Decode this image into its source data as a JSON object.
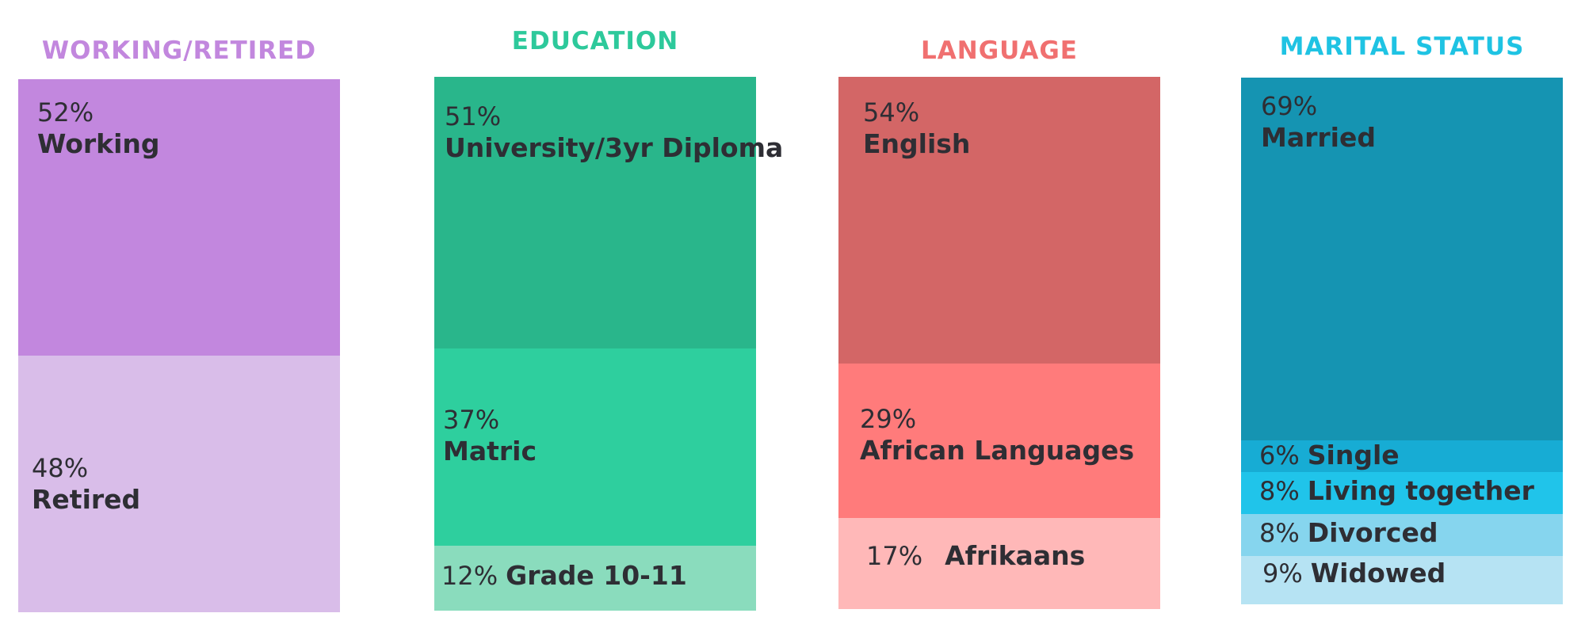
{
  "chart_data": [
    {
      "type": "bar",
      "title": "WORKING/RETIRED",
      "title_color": "#c287de",
      "segments": [
        {
          "name": "Working",
          "value": 52,
          "color": "#c287de"
        },
        {
          "name": "Retired",
          "value": 48,
          "color": "#d9bde9"
        }
      ]
    },
    {
      "type": "bar",
      "title": "EDUCATION",
      "title_color": "#2dc99b",
      "segments": [
        {
          "name": "University/3yr Diploma",
          "value": 51,
          "color": "#29b68b"
        },
        {
          "name": "Matric",
          "value": 37,
          "color": "#2ecf9e"
        },
        {
          "name": "Grade 10-11",
          "value": 12,
          "color": "#8adcbd"
        }
      ]
    },
    {
      "type": "bar",
      "title": "LANGUAGE",
      "title_color": "#f07070",
      "segments": [
        {
          "name": "English",
          "value": 54,
          "color": "#d36666"
        },
        {
          "name": "African Languages",
          "value": 29,
          "color": "#ff7b7b"
        },
        {
          "name": "Afrikaans",
          "value": 17,
          "color": "#ffb8b8"
        }
      ]
    },
    {
      "type": "bar",
      "title": "MARITAL STATUS",
      "title_color": "#1fc3e3",
      "segments": [
        {
          "name": "Married",
          "value": 69,
          "color": "#1594b2"
        },
        {
          "name": "Single",
          "value": 6,
          "color": "#17acd4"
        },
        {
          "name": "Living together",
          "value": 8,
          "color": "#20c4ea"
        },
        {
          "name": "Divorced",
          "value": 8,
          "color": "#86d5ee"
        },
        {
          "name": "Widowed",
          "value": 9,
          "color": "#b6e3f3"
        }
      ]
    }
  ]
}
